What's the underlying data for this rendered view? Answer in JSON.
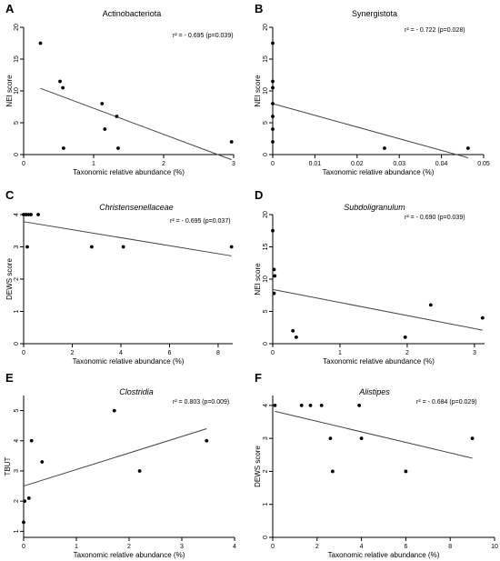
{
  "chart_data": [
    {
      "type": "scatter",
      "panel": "A",
      "title": "Actinobacteriota",
      "title_italic": false,
      "stat": "r² = - 0.695 (p=0.039)",
      "xlabel": "Taxonomic relative abundance (%)",
      "ylabel": "NEI score",
      "xlim": [
        0,
        3
      ],
      "ylim": [
        0,
        20
      ],
      "xticks": [
        0,
        1,
        2,
        3
      ],
      "yticks": [
        0,
        5,
        10,
        15,
        20
      ],
      "points": [
        [
          0.24,
          17.5
        ],
        [
          0.52,
          11.5
        ],
        [
          0.56,
          10.5
        ],
        [
          0.57,
          1.0
        ],
        [
          1.12,
          8.0
        ],
        [
          1.16,
          4.0
        ],
        [
          1.33,
          6.0
        ],
        [
          1.35,
          1.0
        ],
        [
          2.97,
          2.0
        ]
      ],
      "fit": {
        "x": [
          0.24,
          2.97
        ],
        "y": [
          10.4,
          -0.8
        ]
      }
    },
    {
      "type": "scatter",
      "panel": "B",
      "title": "Synergistota",
      "title_italic": false,
      "stat": "r² = - 0.722 (p=0.028)",
      "xlabel": "Taxonomic relative abundance (%)",
      "ylabel": "NEI score",
      "xlim": [
        0,
        0.05
      ],
      "ylim": [
        0,
        20
      ],
      "xticks": [
        0,
        0.01,
        0.02,
        0.03,
        0.04,
        0.05
      ],
      "yticks": [
        0,
        5,
        10,
        15,
        20
      ],
      "points": [
        [
          0.0,
          17.5
        ],
        [
          0.0,
          11.5
        ],
        [
          0.0,
          10.5
        ],
        [
          0.0,
          8.0
        ],
        [
          0.0,
          6.0
        ],
        [
          0.0,
          4.0
        ],
        [
          0.0,
          2.0
        ],
        [
          0.0265,
          1.0
        ],
        [
          0.0463,
          1.0
        ]
      ],
      "fit": {
        "x": [
          0.0,
          0.0463
        ],
        "y": [
          8.0,
          -0.5
        ]
      }
    },
    {
      "type": "scatter",
      "panel": "C",
      "title": "Christensenellaceae",
      "title_italic": true,
      "stat": "r² = - 0.695 (p=0.037)",
      "xlabel": "Taxonomic relative abundance (%)",
      "ylabel": "DEWS score",
      "xlim": [
        0,
        8.6
      ],
      "ylim": [
        0,
        4
      ],
      "xticks": [
        0,
        2,
        4,
        6,
        8
      ],
      "yticks": [
        0,
        1,
        2,
        3,
        4
      ],
      "points": [
        [
          0.0,
          4.0
        ],
        [
          0.1,
          4.0
        ],
        [
          0.2,
          4.0
        ],
        [
          0.3,
          4.0
        ],
        [
          0.6,
          4.0
        ],
        [
          0.15,
          3.0
        ],
        [
          2.8,
          3.0
        ],
        [
          4.1,
          3.0
        ],
        [
          8.55,
          3.0
        ]
      ],
      "fit": {
        "x": [
          0.0,
          8.55
        ],
        "y": [
          3.78,
          2.72
        ]
      }
    },
    {
      "type": "scatter",
      "panel": "D",
      "title": "Subdoligranulum",
      "title_italic": true,
      "stat": "r² = - 0.690 (p=0.039)",
      "xlabel": "Taxonomic relative abundance (%)",
      "ylabel": "NEI score",
      "xlim": [
        0,
        3.15
      ],
      "ylim": [
        0,
        20
      ],
      "xticks": [
        0,
        1,
        2,
        3
      ],
      "yticks": [
        0,
        5,
        10,
        15,
        20
      ],
      "points": [
        [
          0.0,
          17.5
        ],
        [
          0.02,
          11.5
        ],
        [
          0.03,
          10.5
        ],
        [
          0.02,
          7.8
        ],
        [
          0.3,
          2.0
        ],
        [
          0.35,
          1.0
        ],
        [
          1.97,
          1.0
        ],
        [
          2.35,
          6.0
        ],
        [
          3.12,
          4.0
        ]
      ],
      "fit": {
        "x": [
          0.0,
          3.12
        ],
        "y": [
          8.4,
          2.1
        ]
      }
    },
    {
      "type": "scatter",
      "panel": "E",
      "title": "Clostridia",
      "title_italic": true,
      "stat": "r² = 0.803 (p=0.009)",
      "xlabel": "Taxonomic relative abundance (%)",
      "ylabel": "TBUT",
      "xlim": [
        0,
        4
      ],
      "ylim": [
        0.8,
        5.5
      ],
      "xticks": [
        0,
        1,
        2,
        3,
        4
      ],
      "yticks": [
        1,
        2,
        3,
        4,
        5
      ],
      "points": [
        [
          0.0,
          1.3
        ],
        [
          0.02,
          2.0
        ],
        [
          0.1,
          2.1
        ],
        [
          0.15,
          4.0
        ],
        [
          0.35,
          3.3
        ],
        [
          1.72,
          5.0
        ],
        [
          2.2,
          3.0
        ],
        [
          3.47,
          4.0
        ]
      ],
      "fit": {
        "x": [
          0.0,
          3.47
        ],
        "y": [
          2.5,
          4.4
        ]
      }
    },
    {
      "type": "scatter",
      "panel": "F",
      "title": "Alistipes",
      "title_italic": true,
      "stat": "r² = - 0.684 (p=0.029)",
      "xlabel": "Taxonomic relative abundance (%)",
      "ylabel": "DEWS score",
      "xlim": [
        0,
        10
      ],
      "ylim": [
        0,
        4.3
      ],
      "xticks": [
        0,
        2,
        4,
        6,
        8,
        10
      ],
      "yticks": [
        0,
        1,
        2,
        3,
        4
      ],
      "points": [
        [
          0.1,
          4.0
        ],
        [
          1.3,
          4.0
        ],
        [
          1.7,
          4.0
        ],
        [
          2.2,
          4.0
        ],
        [
          3.9,
          4.0
        ],
        [
          2.6,
          3.0
        ],
        [
          4.0,
          3.0
        ],
        [
          9.0,
          3.0
        ],
        [
          2.7,
          2.0
        ],
        [
          6.0,
          2.0
        ]
      ],
      "fit": {
        "x": [
          0.1,
          9.0
        ],
        "y": [
          3.82,
          2.4
        ]
      }
    }
  ]
}
